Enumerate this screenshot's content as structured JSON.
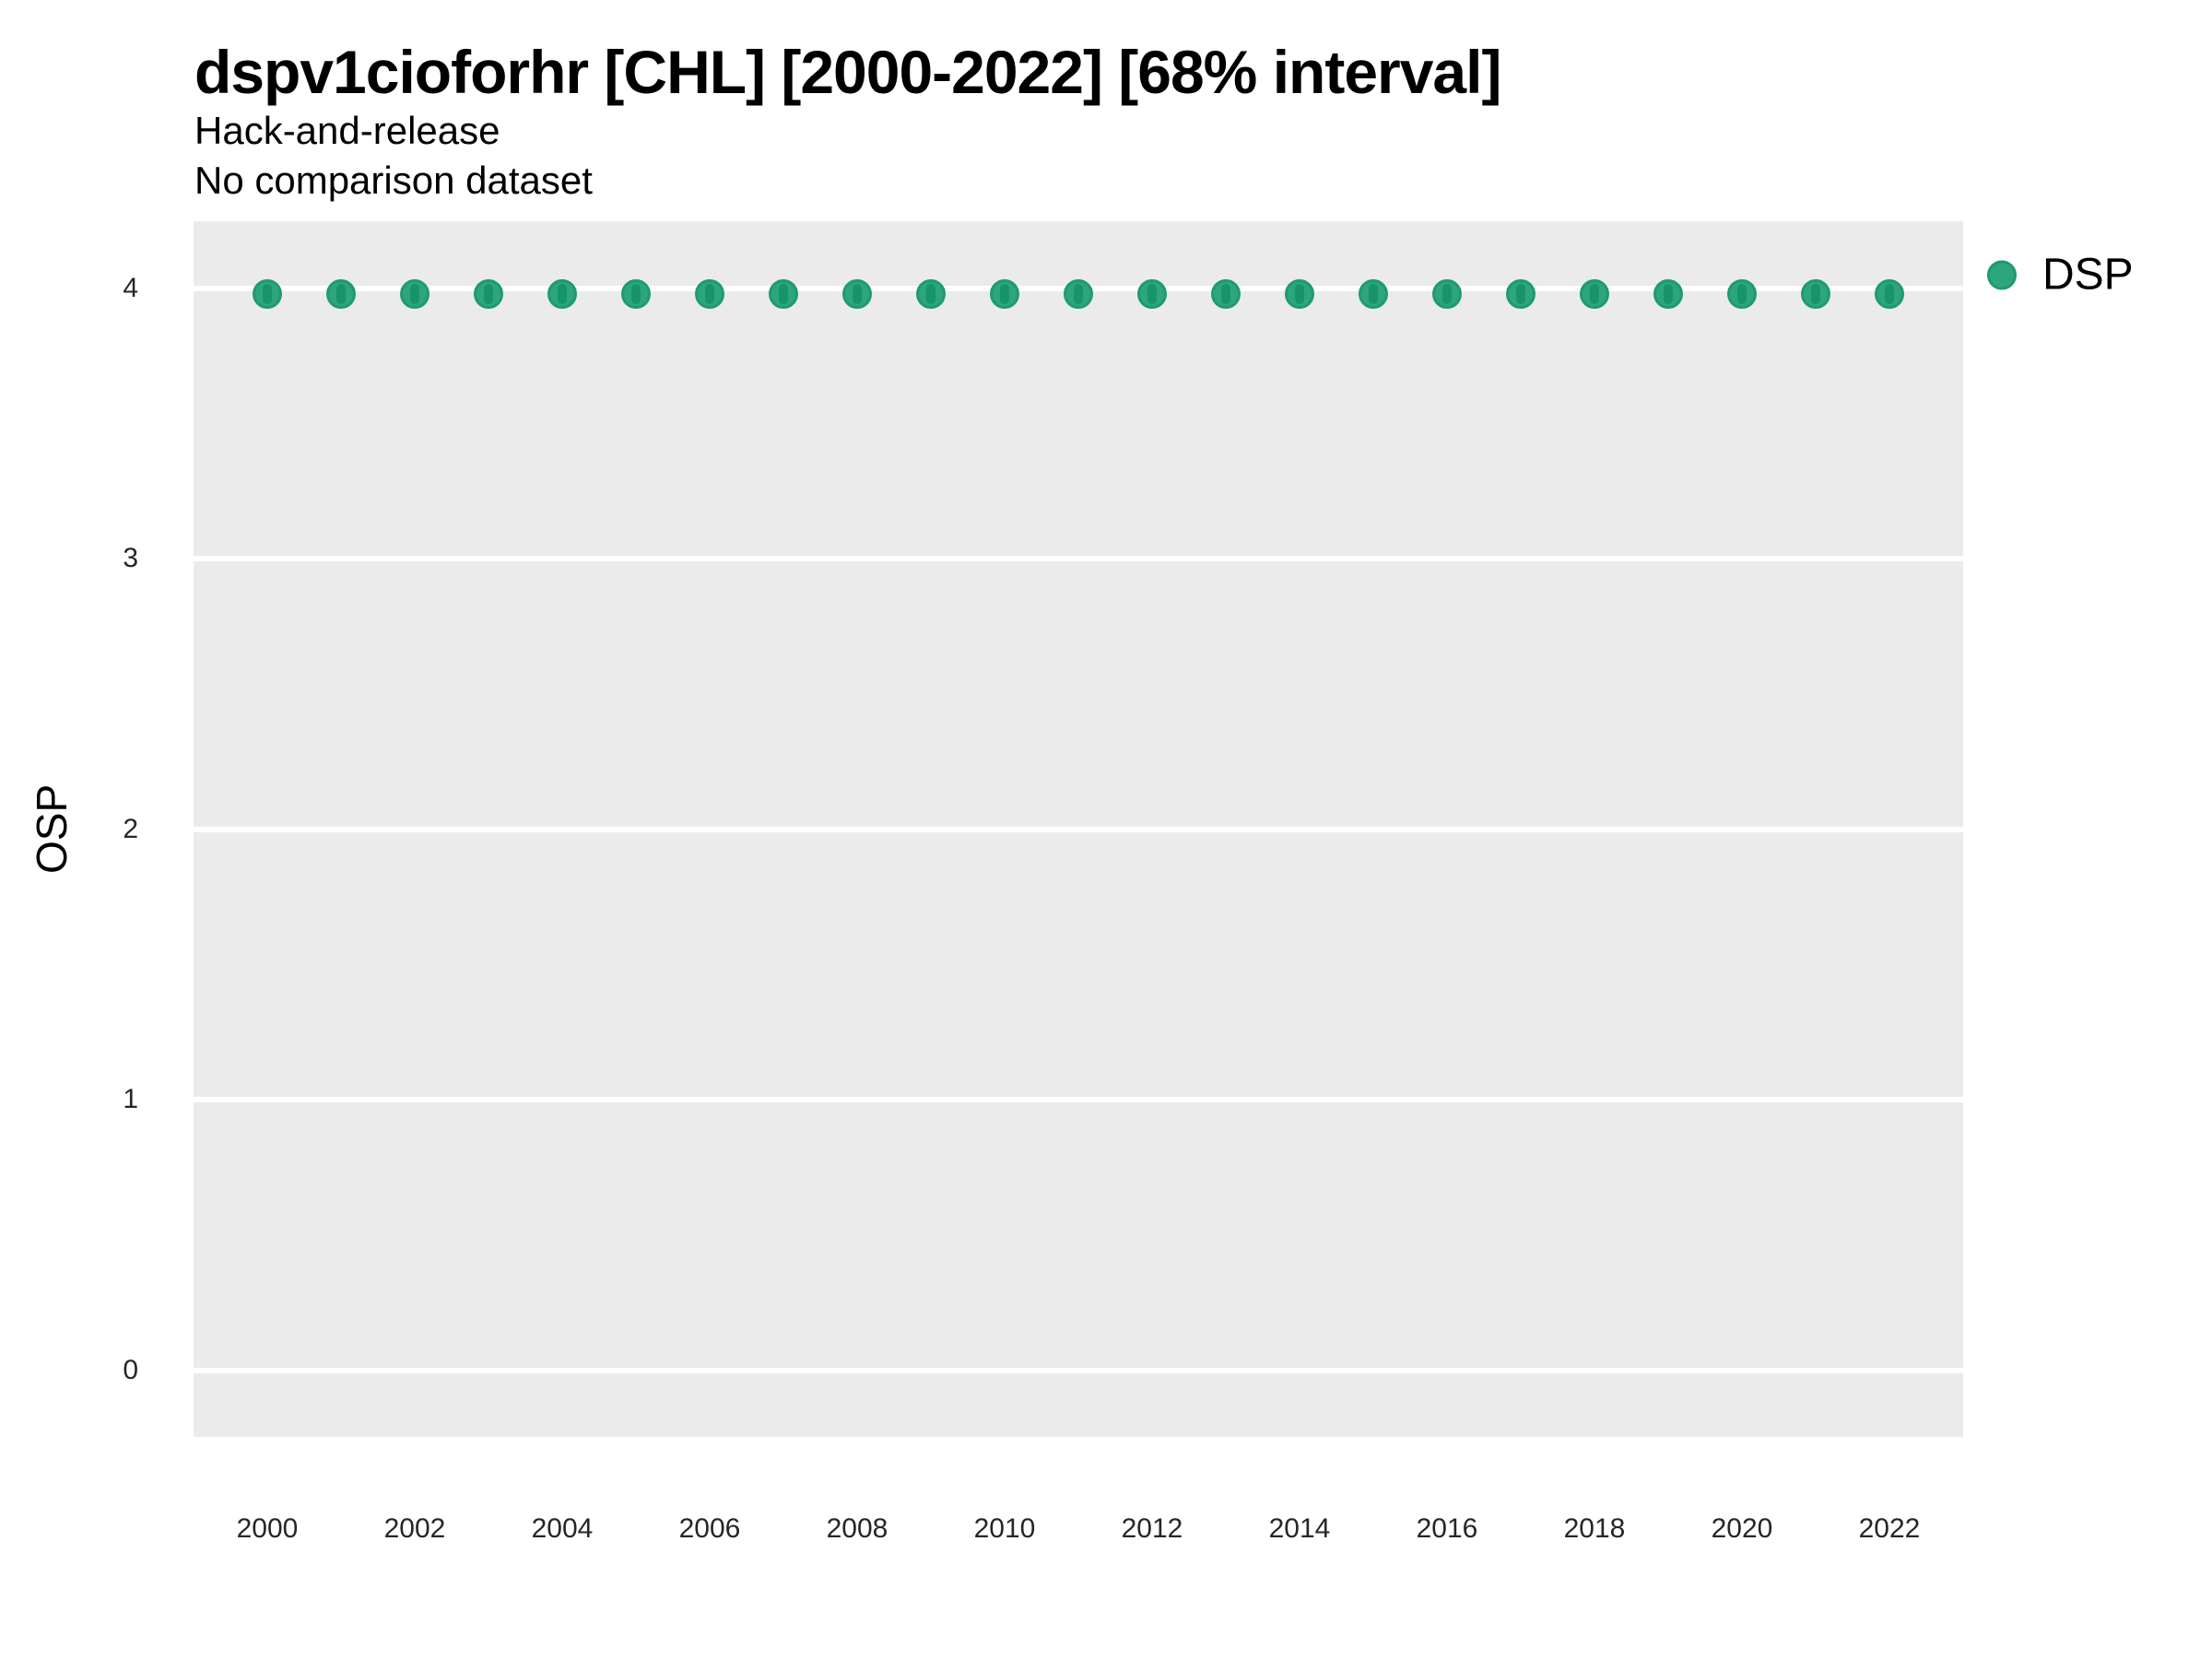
{
  "header": {
    "title": "dspv1cioforhr [CHL] [2000-2022] [68% interval]",
    "subtitle1": "Hack-and-release",
    "subtitle2": "No comparison dataset"
  },
  "chart_data": {
    "type": "scatter",
    "title": "dspv1cioforhr [CHL] [2000-2022] [68% interval]",
    "subtitle": "Hack-and-release",
    "note": "No comparison dataset",
    "xlabel": "",
    "ylabel": "OSP",
    "x": [
      2000,
      2001,
      2002,
      2003,
      2004,
      2005,
      2006,
      2007,
      2008,
      2009,
      2010,
      2011,
      2012,
      2013,
      2014,
      2015,
      2016,
      2017,
      2018,
      2019,
      2020,
      2021,
      2022
    ],
    "series": [
      {
        "name": "DSP",
        "values": [
          3.98,
          3.98,
          3.98,
          3.98,
          3.98,
          3.98,
          3.98,
          3.98,
          3.98,
          3.98,
          3.98,
          3.98,
          3.98,
          3.98,
          3.98,
          3.98,
          3.98,
          3.98,
          3.98,
          3.98,
          3.98,
          3.98,
          3.98
        ]
      }
    ],
    "interval": "68%",
    "xticks": [
      2000,
      2002,
      2004,
      2006,
      2008,
      2010,
      2012,
      2014,
      2016,
      2018,
      2020,
      2022
    ],
    "yticks": [
      0,
      1,
      2,
      3,
      4
    ],
    "ylim": [
      -0.25,
      4.25
    ],
    "grid": "horizontal-major-only",
    "legend": {
      "position": "right-top",
      "entries": [
        {
          "label": "DSP",
          "color": "#2DA67D"
        }
      ]
    },
    "colors": {
      "point_fill": "#2DA67D",
      "point_border": "#1F9A70",
      "interval_line": "#17946B",
      "panel_bg": "#EBEBEB",
      "gridline": "#FFFFFF"
    }
  }
}
